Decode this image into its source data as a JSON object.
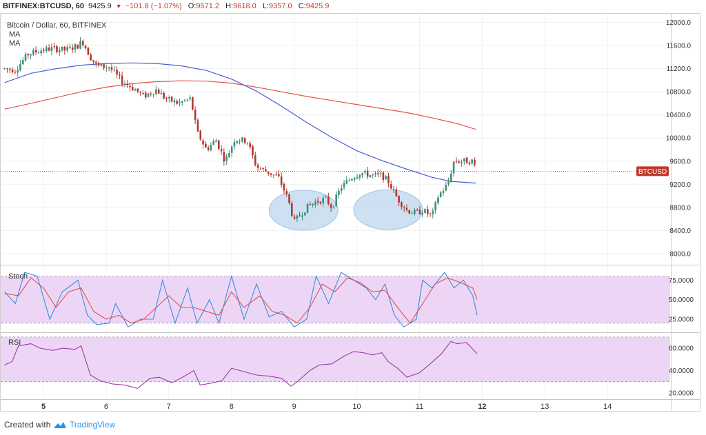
{
  "header": {
    "symbol": "BITFINEX:BTCUSD, 60",
    "last": "9425.9",
    "change_arrow": "▼",
    "change": "−101.8 (−1.07%)",
    "open_k": "O:",
    "open_v": "9571.2",
    "high_k": "H:",
    "high_v": "9618.0",
    "low_k": "L:",
    "low_v": "9357.0",
    "close_k": "C:",
    "close_v": "9425.9"
  },
  "footer": {
    "created_with": "Created with",
    "brand": "TradingView",
    "logo_icon": "tradingview-cloud-icon"
  },
  "colors": {
    "up": "#3d8f7a",
    "down": "#b5362c",
    "ma_fast": "#4b5bd6",
    "ma_slow": "#e0524a",
    "price_line": "#c0392b",
    "stoch_k": "#3a8de0",
    "stoch_d": "#e0524a",
    "rsi": "#9c3aa8",
    "band_fill": "#e7c8f2",
    "highlight": "#bcd7ee"
  },
  "chart_data": [
    {
      "type": "candlestick",
      "title": "Bitcoin / Dollar, 60, BITFINEX",
      "legend": [
        "MA",
        "MA"
      ],
      "price_label": "BTCUSD",
      "last_price": 9425.9,
      "ylim": [
        7820,
        12150
      ],
      "y_ticks": [
        "12000.0",
        "11600.0",
        "11200.0",
        "10800.0",
        "10400.0",
        "10000.0",
        "9600.0",
        "9200.0",
        "8800.0",
        "8400.0",
        "8000.0"
      ],
      "x_ticks": [
        "5",
        "6",
        "7",
        "8",
        "9",
        "10",
        "11",
        "12",
        "13",
        "14"
      ],
      "xlim": [
        4.35,
        15.0
      ],
      "anchors": [
        [
          4.38,
          11200
        ],
        [
          4.55,
          11180
        ],
        [
          4.75,
          11450
        ],
        [
          4.95,
          11520
        ],
        [
          5.15,
          11550
        ],
        [
          5.35,
          11520
        ],
        [
          5.55,
          11600
        ],
        [
          5.62,
          11680
        ],
        [
          5.75,
          11400
        ],
        [
          5.85,
          11250
        ],
        [
          6.05,
          11230
        ],
        [
          6.25,
          10980
        ],
        [
          6.45,
          10850
        ],
        [
          6.6,
          10720
        ],
        [
          6.8,
          10840
        ],
        [
          6.95,
          10680
        ],
        [
          7.15,
          10600
        ],
        [
          7.35,
          10680
        ],
        [
          7.45,
          10100
        ],
        [
          7.6,
          9800
        ],
        [
          7.75,
          9970
        ],
        [
          7.9,
          9600
        ],
        [
          8.05,
          9980
        ],
        [
          8.25,
          9950
        ],
        [
          8.4,
          9500
        ],
        [
          8.6,
          9400
        ],
        [
          8.75,
          9320
        ],
        [
          8.9,
          8950
        ],
        [
          9.0,
          8550
        ],
        [
          9.2,
          8800
        ],
        [
          9.35,
          8900
        ],
        [
          9.5,
          8950
        ],
        [
          9.6,
          8800
        ],
        [
          9.75,
          9150
        ],
        [
          9.9,
          9300
        ],
        [
          10.05,
          9400
        ],
        [
          10.25,
          9350
        ],
        [
          10.4,
          9350
        ],
        [
          10.5,
          9250
        ],
        [
          10.65,
          8950
        ],
        [
          10.8,
          8750
        ],
        [
          10.95,
          8700
        ],
        [
          11.05,
          8750
        ],
        [
          11.2,
          8650
        ],
        [
          11.3,
          9000
        ],
        [
          11.45,
          9200
        ],
        [
          11.55,
          9600
        ],
        [
          11.7,
          9600
        ],
        [
          11.85,
          9600
        ],
        [
          11.92,
          9426
        ]
      ],
      "ma_fast": [
        [
          4.38,
          10960
        ],
        [
          4.8,
          11120
        ],
        [
          5.2,
          11200
        ],
        [
          5.6,
          11260
        ],
        [
          6.0,
          11290
        ],
        [
          6.4,
          11300
        ],
        [
          6.8,
          11290
        ],
        [
          7.2,
          11250
        ],
        [
          7.6,
          11170
        ],
        [
          8.0,
          11020
        ],
        [
          8.4,
          10810
        ],
        [
          8.8,
          10550
        ],
        [
          9.2,
          10270
        ],
        [
          9.6,
          10010
        ],
        [
          10.0,
          9780
        ],
        [
          10.4,
          9610
        ],
        [
          10.8,
          9460
        ],
        [
          11.2,
          9320
        ],
        [
          11.5,
          9250
        ],
        [
          11.9,
          9220
        ]
      ],
      "ma_slow": [
        [
          4.38,
          10500
        ],
        [
          4.8,
          10600
        ],
        [
          5.2,
          10700
        ],
        [
          5.6,
          10800
        ],
        [
          6.0,
          10880
        ],
        [
          6.4,
          10940
        ],
        [
          6.8,
          10975
        ],
        [
          7.2,
          10990
        ],
        [
          7.6,
          10985
        ],
        [
          8.0,
          10950
        ],
        [
          8.4,
          10880
        ],
        [
          8.8,
          10800
        ],
        [
          9.2,
          10720
        ],
        [
          9.6,
          10650
        ],
        [
          10.0,
          10580
        ],
        [
          10.4,
          10510
        ],
        [
          10.8,
          10440
        ],
        [
          11.2,
          10350
        ],
        [
          11.6,
          10250
        ],
        [
          11.9,
          10150
        ]
      ],
      "highlights": [
        [
          9.15,
          8750
        ],
        [
          10.5,
          8760
        ]
      ]
    },
    {
      "type": "line",
      "title": "Stoch",
      "ylim": [
        10,
        93
      ],
      "y_ticks": [
        "75.0000",
        "50.0000",
        "25.0000"
      ],
      "band": [
        20,
        80
      ],
      "series": [
        {
          "role": "k",
          "values": [
            [
              4.38,
              60
            ],
            [
              4.55,
              45
            ],
            [
              4.7,
              85
            ],
            [
              4.9,
              80
            ],
            [
              5.1,
              25
            ],
            [
              5.3,
              60
            ],
            [
              5.55,
              75
            ],
            [
              5.7,
              30
            ],
            [
              5.85,
              18
            ],
            [
              6.05,
              20
            ],
            [
              6.15,
              45
            ],
            [
              6.35,
              15
            ],
            [
              6.55,
              25
            ],
            [
              6.75,
              25
            ],
            [
              6.9,
              75
            ],
            [
              7.1,
              20
            ],
            [
              7.3,
              65
            ],
            [
              7.45,
              20
            ],
            [
              7.65,
              50
            ],
            [
              7.8,
              20
            ],
            [
              8.0,
              80
            ],
            [
              8.2,
              25
            ],
            [
              8.4,
              70
            ],
            [
              8.6,
              28
            ],
            [
              8.8,
              35
            ],
            [
              9.0,
              15
            ],
            [
              9.2,
              25
            ],
            [
              9.35,
              80
            ],
            [
              9.55,
              45
            ],
            [
              9.75,
              85
            ],
            [
              9.95,
              75
            ],
            [
              10.15,
              65
            ],
            [
              10.3,
              50
            ],
            [
              10.45,
              70
            ],
            [
              10.6,
              30
            ],
            [
              10.75,
              15
            ],
            [
              10.95,
              25
            ],
            [
              11.05,
              75
            ],
            [
              11.2,
              65
            ],
            [
              11.4,
              85
            ],
            [
              11.55,
              65
            ],
            [
              11.7,
              75
            ],
            [
              11.85,
              55
            ],
            [
              11.92,
              30
            ]
          ]
        },
        {
          "role": "d",
          "values": [
            [
              4.38,
              58
            ],
            [
              4.6,
              55
            ],
            [
              4.8,
              78
            ],
            [
              5.0,
              65
            ],
            [
              5.2,
              40
            ],
            [
              5.4,
              60
            ],
            [
              5.6,
              65
            ],
            [
              5.8,
              35
            ],
            [
              6.0,
              25
            ],
            [
              6.2,
              30
            ],
            [
              6.4,
              20
            ],
            [
              6.6,
              25
            ],
            [
              6.8,
              40
            ],
            [
              7.0,
              55
            ],
            [
              7.2,
              40
            ],
            [
              7.4,
              40
            ],
            [
              7.6,
              35
            ],
            [
              7.8,
              30
            ],
            [
              8.0,
              60
            ],
            [
              8.2,
              40
            ],
            [
              8.45,
              55
            ],
            [
              8.65,
              35
            ],
            [
              8.85,
              30
            ],
            [
              9.05,
              20
            ],
            [
              9.25,
              40
            ],
            [
              9.45,
              70
            ],
            [
              9.65,
              60
            ],
            [
              9.85,
              78
            ],
            [
              10.05,
              72
            ],
            [
              10.25,
              60
            ],
            [
              10.45,
              62
            ],
            [
              10.65,
              40
            ],
            [
              10.85,
              20
            ],
            [
              11.05,
              45
            ],
            [
              11.25,
              70
            ],
            [
              11.45,
              78
            ],
            [
              11.65,
              72
            ],
            [
              11.85,
              65
            ],
            [
              11.92,
              50
            ]
          ]
        }
      ]
    },
    {
      "type": "line",
      "title": "RSI",
      "ylim": [
        15,
        73
      ],
      "y_ticks": [
        "60.0000",
        "40.0000",
        "20.0000"
      ],
      "band": [
        30,
        70
      ],
      "series": [
        {
          "role": "rsi",
          "values": [
            [
              4.38,
              45
            ],
            [
              4.5,
              48
            ],
            [
              4.6,
              62
            ],
            [
              4.8,
              64
            ],
            [
              4.95,
              60
            ],
            [
              5.15,
              58
            ],
            [
              5.3,
              60
            ],
            [
              5.5,
              59
            ],
            [
              5.6,
              62
            ],
            [
              5.75,
              36
            ],
            [
              5.9,
              31
            ],
            [
              6.1,
              28
            ],
            [
              6.3,
              27
            ],
            [
              6.5,
              24
            ],
            [
              6.7,
              33
            ],
            [
              6.85,
              34
            ],
            [
              7.05,
              29
            ],
            [
              7.25,
              35
            ],
            [
              7.4,
              40
            ],
            [
              7.5,
              27
            ],
            [
              7.7,
              29
            ],
            [
              7.85,
              31
            ],
            [
              8.0,
              42
            ],
            [
              8.2,
              39
            ],
            [
              8.4,
              36
            ],
            [
              8.6,
              35
            ],
            [
              8.8,
              33
            ],
            [
              8.95,
              26
            ],
            [
              9.05,
              30
            ],
            [
              9.25,
              40
            ],
            [
              9.4,
              45
            ],
            [
              9.6,
              46
            ],
            [
              9.8,
              53
            ],
            [
              9.95,
              57
            ],
            [
              10.1,
              56
            ],
            [
              10.25,
              54
            ],
            [
              10.4,
              56
            ],
            [
              10.5,
              48
            ],
            [
              10.65,
              42
            ],
            [
              10.8,
              34
            ],
            [
              11.0,
              38
            ],
            [
              11.15,
              45
            ],
            [
              11.35,
              55
            ],
            [
              11.5,
              66
            ],
            [
              11.6,
              64
            ],
            [
              11.75,
              65
            ],
            [
              11.92,
              55
            ]
          ]
        }
      ]
    }
  ]
}
